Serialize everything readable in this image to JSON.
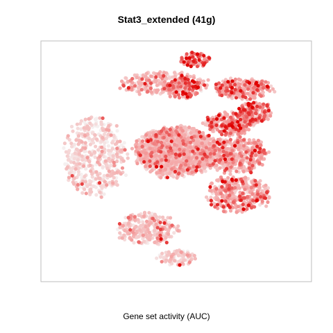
{
  "chart_data": {
    "type": "scatter",
    "title": "Stat3_extended (41g)",
    "xlabel": "Gene set activity (AUC)",
    "ylabel": "",
    "grid": false,
    "legend": "none",
    "axes_ticks": false,
    "colors": {
      "low": "#f5f0f0",
      "mid": "#f4a3a3",
      "high": "#e00000",
      "frame": "#bdbdbd"
    },
    "clusters": [
      {
        "name": "",
        "cx": 0.0,
        "cy": 0.6,
        "rx": 1.3,
        "ry": 0.95,
        "n": 1500,
        "mean_auc": 0.35
      },
      {
        "name": "",
        "cx": 1.7,
        "cy": 1.7,
        "rx": 0.8,
        "ry": 0.45,
        "n": 260,
        "mean_auc": 0.55
      },
      {
        "name": "",
        "cx": 0.2,
        "cy": 3.0,
        "rx": 0.6,
        "ry": 0.4,
        "n": 140,
        "mean_auc": 0.62
      },
      {
        "name": "",
        "cx": 2.5,
        "cy": 2.1,
        "rx": 0.55,
        "ry": 0.4,
        "n": 150,
        "mean_auc": 0.6
      },
      {
        "name": "",
        "cx": -2.6,
        "cy": 0.4,
        "rx": 1.0,
        "ry": 1.5,
        "n": 500,
        "mean_auc": 0.18
      },
      {
        "name": "",
        "cx": -0.4,
        "cy": 3.2,
        "rx": 1.4,
        "ry": 0.45,
        "n": 260,
        "mean_auc": 0.38
      },
      {
        "name": "",
        "cx": 2.1,
        "cy": 3.0,
        "rx": 1.0,
        "ry": 0.4,
        "n": 240,
        "mean_auc": 0.55
      },
      {
        "name": "",
        "cx": 0.6,
        "cy": 4.1,
        "rx": 0.45,
        "ry": 0.3,
        "n": 80,
        "mean_auc": 0.7
      },
      {
        "name": "",
        "cx": 1.9,
        "cy": 0.5,
        "rx": 1.0,
        "ry": 0.7,
        "n": 420,
        "mean_auc": 0.45
      },
      {
        "name": "",
        "cx": 2.0,
        "cy": -1.0,
        "rx": 1.0,
        "ry": 0.7,
        "n": 360,
        "mean_auc": 0.5
      },
      {
        "name": "",
        "cx": 0.0,
        "cy": -3.4,
        "rx": 0.6,
        "ry": 0.3,
        "n": 100,
        "mean_auc": 0.25
      },
      {
        "name": "",
        "cx": -0.9,
        "cy": -2.3,
        "rx": 1.0,
        "ry": 0.6,
        "n": 280,
        "mean_auc": 0.3
      }
    ],
    "xlim": [
      -4,
      4
    ],
    "ylim": [
      -4,
      4.5
    ]
  }
}
